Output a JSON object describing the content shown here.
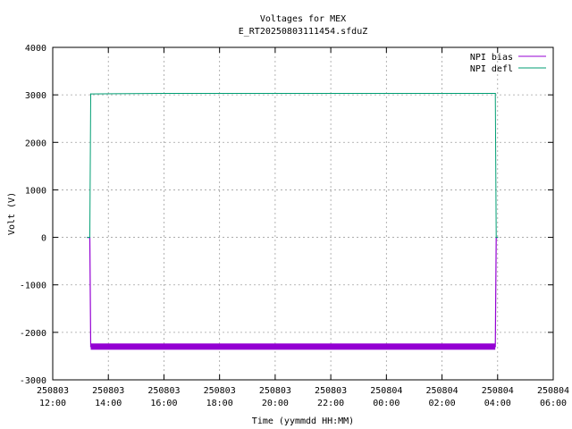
{
  "chart_data": {
    "type": "line",
    "title": "Voltages for MEX",
    "subtitle": "E_RT20250803111454.sfduZ",
    "xlabel": "Time (yymmdd HH:MM)",
    "ylabel": "Volt (V)",
    "xlim": [
      "250803 12:00",
      "250804 06:00"
    ],
    "ylim": [
      -3000,
      4000
    ],
    "grid": true,
    "legend_position": "top-right",
    "x_ticks": [
      {
        "date": "250803",
        "time": "12:00"
      },
      {
        "date": "250803",
        "time": "14:00"
      },
      {
        "date": "250803",
        "time": "16:00"
      },
      {
        "date": "250803",
        "time": "18:00"
      },
      {
        "date": "250803",
        "time": "20:00"
      },
      {
        "date": "250803",
        "time": "22:00"
      },
      {
        "date": "250804",
        "time": "00:00"
      },
      {
        "date": "250804",
        "time": "02:00"
      },
      {
        "date": "250804",
        "time": "04:00"
      },
      {
        "date": "250804",
        "time": "06:00"
      }
    ],
    "y_ticks": [
      "-3000",
      "-2000",
      "-1000",
      "0",
      "1000",
      "2000",
      "3000",
      "4000"
    ],
    "series": [
      {
        "name": "NPI bias",
        "color": "#9400d3",
        "points": [
          {
            "x": "250803 13:15",
            "y": 0
          },
          {
            "x": "250803 13:20",
            "y": 0
          },
          {
            "x": "250803 13:22",
            "y": -2300
          },
          {
            "x": "250803 16:00",
            "y": -2300
          },
          {
            "x": "250803 20:00",
            "y": -2310
          },
          {
            "x": "250804 00:00",
            "y": -2300
          },
          {
            "x": "250804 03:55",
            "y": -2300
          },
          {
            "x": "250804 03:57",
            "y": 0
          },
          {
            "x": "250804 04:00",
            "y": 0
          }
        ]
      },
      {
        "name": "NPI defl",
        "color": "#009e73",
        "points": [
          {
            "x": "250803 13:15",
            "y": 0
          },
          {
            "x": "250803 13:20",
            "y": 0
          },
          {
            "x": "250803 13:22",
            "y": 3020
          },
          {
            "x": "250803 16:00",
            "y": 3030
          },
          {
            "x": "250803 20:00",
            "y": 3030
          },
          {
            "x": "250804 00:00",
            "y": 3030
          },
          {
            "x": "250804 03:55",
            "y": 3030
          },
          {
            "x": "250804 03:57",
            "y": 0
          },
          {
            "x": "250804 04:00",
            "y": 0
          }
        ]
      }
    ]
  }
}
